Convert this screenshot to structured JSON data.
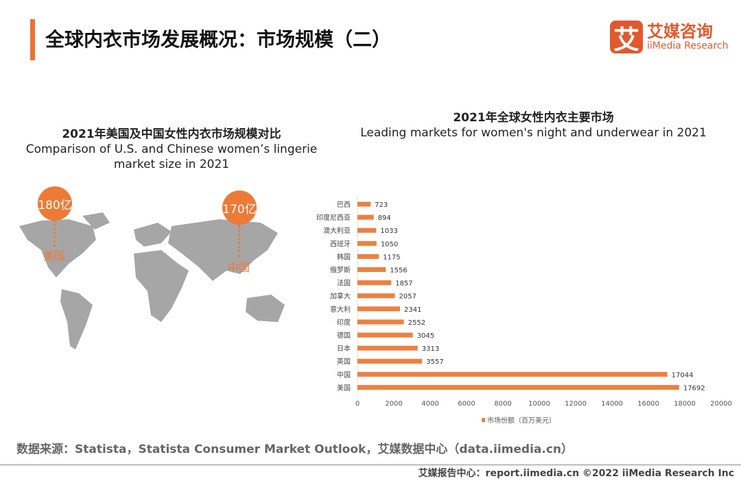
{
  "header": {
    "title": "全球内衣市场发展概况：市场规模（二）"
  },
  "logo": {
    "mark": "艾",
    "name_cn": "艾媒咨询",
    "name_en": "iiMedia Research"
  },
  "left_panel": {
    "title_cn": "2021年美国及中国女性内衣市场规模对比",
    "title_en": "Comparison of U.S. and Chinese women’s lingerie market size in 2021",
    "us": {
      "value": "180亿",
      "label": "美国"
    },
    "cn": {
      "value": "170亿",
      "label": "中国"
    },
    "map_color": "#a6a6a6",
    "accent": "#ee7a37"
  },
  "chart_data": {
    "type": "bar",
    "orientation": "horizontal",
    "title": "2021年全球女性内衣主要市场",
    "subtitle": "Leading markets for women's night and underwear in 2021",
    "categories": [
      "巴西",
      "印度尼西亚",
      "澳大利亚",
      "西班牙",
      "韩国",
      "俄罗斯",
      "法国",
      "加拿大",
      "意大利",
      "印度",
      "德国",
      "日本",
      "英国",
      "中国",
      "美国"
    ],
    "series": [
      {
        "name": "市场份额（百万美元）",
        "values": [
          723,
          894,
          1033,
          1050,
          1175,
          1556,
          1857,
          2057,
          2341,
          2552,
          3045,
          3313,
          3557,
          17044,
          17692
        ],
        "color": "#ee8040"
      }
    ],
    "xlim": [
      0,
      20000
    ],
    "xticks": [
      0,
      2000,
      4000,
      6000,
      8000,
      10000,
      12000,
      14000,
      16000,
      18000,
      20000
    ],
    "grid": false,
    "legend": "bottom"
  },
  "source": "数据来源：Statista，Statista Consumer Market Outlook，艾媒数据中心（data.iimedia.cn）",
  "footer": "艾媒报告中心：report.iimedia.cn  ©2022  iiMedia Research  Inc"
}
